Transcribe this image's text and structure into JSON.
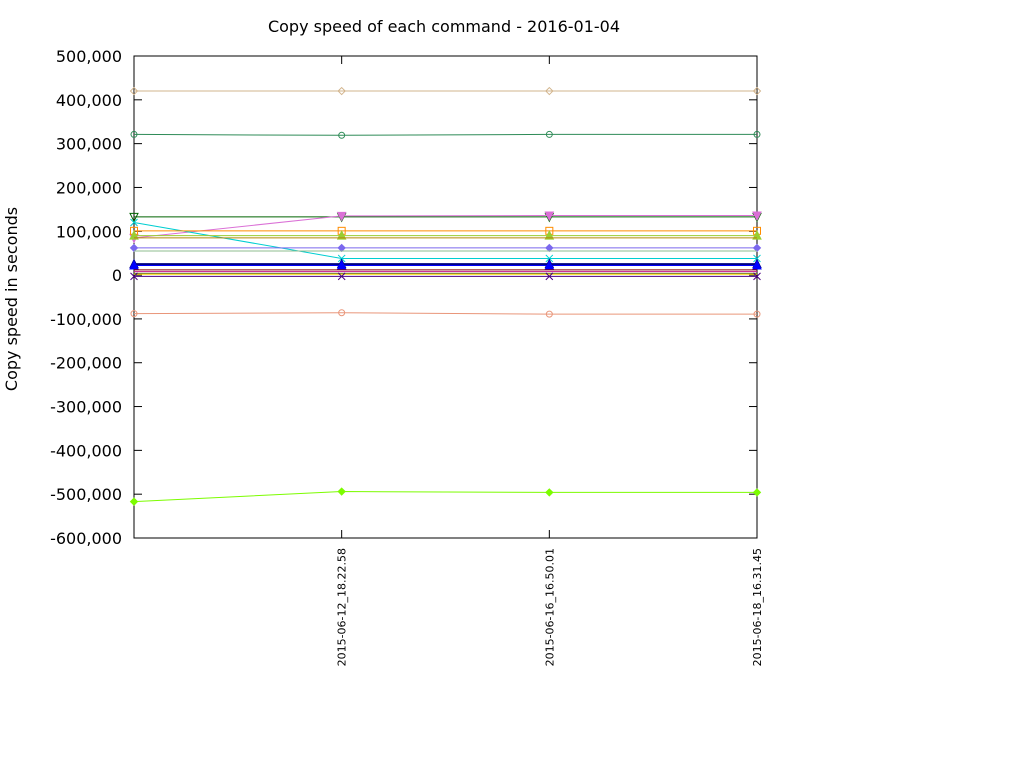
{
  "chart_data": {
    "type": "line",
    "title": "Copy speed of each command - 2016-01-04",
    "ylabel": "Copy speed in seconds",
    "xlabel": "",
    "x": [
      "",
      "2015-06-12_18.22.58",
      "2015-06-16_16.50.01",
      "2015-06-18_16.31.45"
    ],
    "yticks": [
      500000,
      400000,
      300000,
      200000,
      100000,
      0,
      -100000,
      -200000,
      -300000,
      -400000,
      -500000,
      -600000
    ],
    "ytick_labels": [
      "500,000",
      "400,000",
      "300,000",
      "200,000",
      "100,000",
      "0",
      "-100,000",
      "-200,000",
      "-300,000",
      "-400,000",
      "-500,000",
      "-600,000"
    ],
    "ylim": [
      -600000,
      500000
    ],
    "grid": false,
    "legend": "none",
    "series": [
      {
        "color": "#d2b48c",
        "marker": "diamond-open",
        "values": [
          420000,
          420000,
          420000,
          420000
        ]
      },
      {
        "color": "#2e8b57",
        "marker": "circle-open",
        "values": [
          321000,
          319000,
          321000,
          321000
        ]
      },
      {
        "color": "#006400",
        "marker": "triangle-down-open",
        "values": [
          133000,
          133000,
          133000,
          133000
        ]
      },
      {
        "color": "#da70d6",
        "marker": "triangle-down",
        "values": [
          85000,
          135000,
          136000,
          136000
        ]
      },
      {
        "color": "#00ced1",
        "marker": "cross",
        "values": [
          120000,
          38000,
          38000,
          38000
        ]
      },
      {
        "color": "#ff8c00",
        "marker": "square-open",
        "values": [
          101000,
          101000,
          101000,
          101000
        ]
      },
      {
        "color": "#9acd32",
        "marker": "triangle",
        "values": [
          90000,
          90000,
          90000,
          90000
        ]
      },
      {
        "color": "#b8860b",
        "marker": "none",
        "values": [
          85000,
          85000,
          85000,
          85000
        ]
      },
      {
        "color": "#7b68ee",
        "marker": "diamond",
        "values": [
          62000,
          62000,
          62000,
          62000
        ]
      },
      {
        "color": "#8fbc8f",
        "marker": "none",
        "values": [
          55000,
          55000,
          55000,
          55000
        ]
      },
      {
        "color": "#000080",
        "marker": "triangle",
        "values": [
          25000,
          25000,
          25000,
          25000
        ]
      },
      {
        "color": "#0000ff",
        "marker": "triangle",
        "values": [
          22000,
          22000,
          22000,
          22000
        ]
      },
      {
        "color": "#8b0000",
        "marker": "none",
        "values": [
          12000,
          12000,
          12000,
          12000
        ]
      },
      {
        "color": "#c71585",
        "marker": "none",
        "values": [
          8000,
          8000,
          8000,
          8000
        ]
      },
      {
        "color": "#556b2f",
        "marker": "none",
        "values": [
          4000,
          4000,
          4000,
          4000
        ]
      },
      {
        "color": "#ffd700",
        "marker": "none",
        "values": [
          2000,
          2000,
          2000,
          2000
        ]
      },
      {
        "color": "#4b0082",
        "marker": "cross",
        "values": [
          -3000,
          -3000,
          -3000,
          -3000
        ]
      },
      {
        "color": "#e9967a",
        "marker": "circle-open",
        "values": [
          -88000,
          -86000,
          -89000,
          -89000
        ]
      },
      {
        "color": "#7cfc00",
        "marker": "diamond",
        "values": [
          -517000,
          -494000,
          -496000,
          -496000
        ]
      }
    ]
  }
}
